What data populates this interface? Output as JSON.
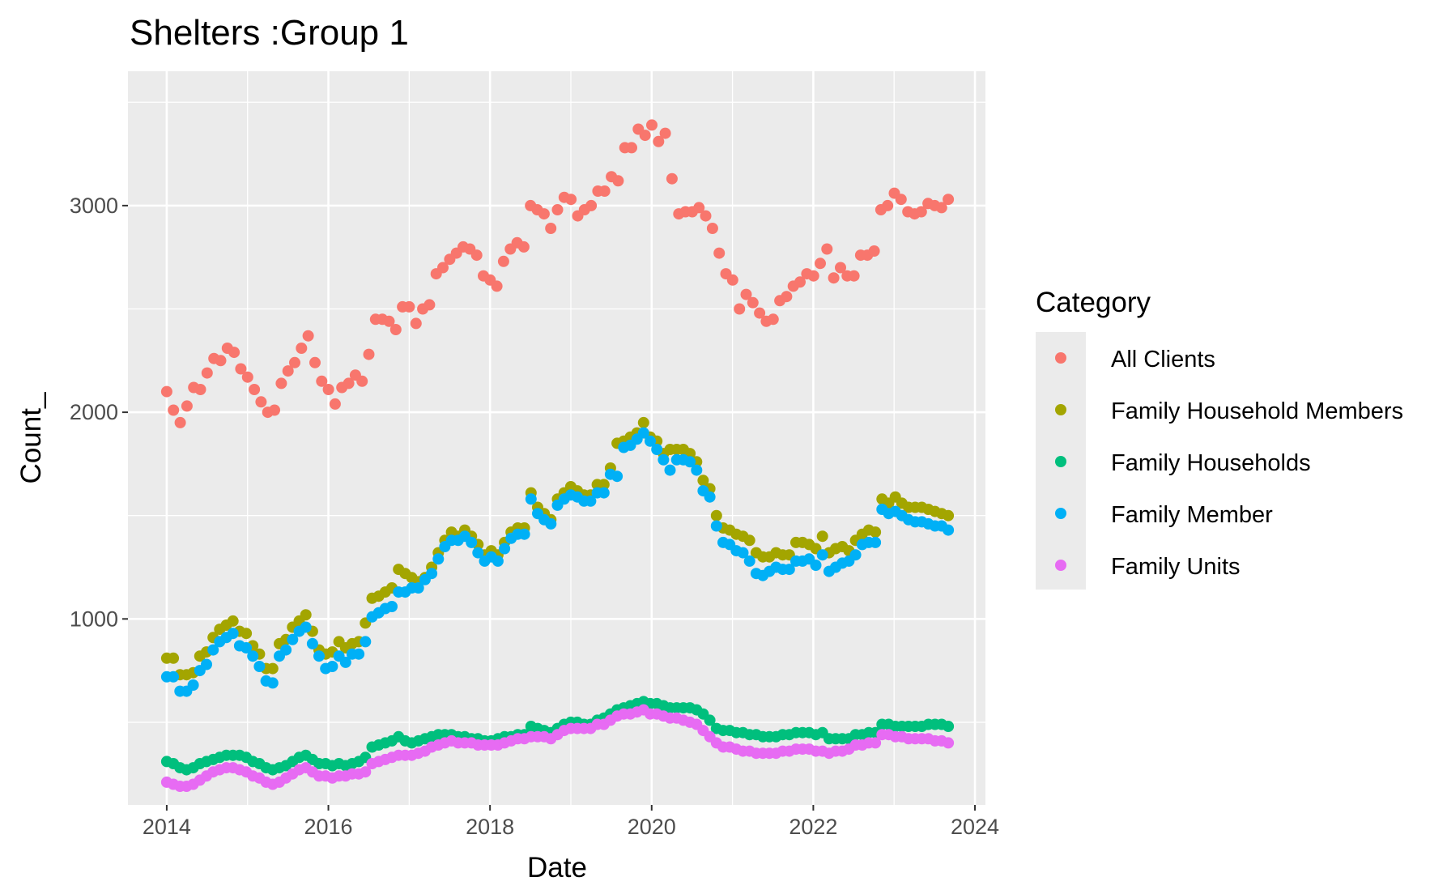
{
  "chart_data": {
    "type": "scatter",
    "title": "Shelters :Group 1",
    "xlabel": "Date",
    "ylabel": "Count_",
    "x_tick_labels": [
      "2014",
      "2016",
      "2018",
      "2020",
      "2022",
      "2024"
    ],
    "y_tick_labels": [
      "1000",
      "2000",
      "3000"
    ],
    "xlim": [
      2013.52,
      2024.13
    ],
    "ylim": [
      100,
      3650
    ],
    "grid": true,
    "legend_title": "Category",
    "legend_position": "right",
    "series": [
      {
        "name": "All Clients",
        "color": "#F8766D",
        "x_start": 2014.0,
        "x_end": 2023.67,
        "values": [
          2100,
          2010,
          1950,
          2030,
          2120,
          2110,
          2190,
          2260,
          2250,
          2310,
          2290,
          2210,
          2170,
          2110,
          2050,
          2000,
          2010,
          2140,
          2200,
          2240,
          2310,
          2370,
          2240,
          2150,
          2110,
          2040,
          2120,
          2140,
          2180,
          2150,
          2280,
          2450,
          2450,
          2440,
          2400,
          2510,
          2510,
          2430,
          2500,
          2520,
          2670,
          2700,
          2740,
          2770,
          2800,
          2790,
          2760,
          2660,
          2640,
          2610,
          2730,
          2790,
          2820,
          2800,
          3000,
          2980,
          2960,
          2890,
          2980,
          3040,
          3030,
          2950,
          2980,
          3000,
          3070,
          3070,
          3140,
          3120,
          3280,
          3280,
          3370,
          3340,
          3390,
          3310,
          3350,
          3130,
          2960,
          2970,
          2970,
          2990,
          2950,
          2890,
          2770,
          2670,
          2640,
          2500,
          2570,
          2530,
          2480,
          2440,
          2450,
          2540,
          2560,
          2610,
          2630,
          2670,
          2660,
          2720,
          2790,
          2650,
          2700,
          2660,
          2660,
          2760,
          2760,
          2780,
          2980,
          3000,
          3060,
          3030,
          2970,
          2960,
          2970,
          3010,
          3000,
          2990,
          3030
        ]
      },
      {
        "name": "Family Household Members",
        "color": "#A3A500",
        "x_start": 2014.0,
        "x_end": 2023.67,
        "values": [
          810,
          810,
          730,
          730,
          740,
          820,
          840,
          910,
          950,
          970,
          990,
          940,
          930,
          870,
          830,
          760,
          760,
          880,
          900,
          960,
          990,
          1020,
          940,
          850,
          830,
          840,
          890,
          860,
          880,
          890,
          980,
          1100,
          1110,
          1130,
          1150,
          1240,
          1220,
          1200,
          1180,
          1200,
          1250,
          1320,
          1380,
          1420,
          1400,
          1430,
          1400,
          1360,
          1310,
          1330,
          1310,
          1370,
          1420,
          1440,
          1440,
          1610,
          1540,
          1510,
          1480,
          1580,
          1610,
          1640,
          1620,
          1600,
          1600,
          1650,
          1650,
          1730,
          1850,
          1860,
          1880,
          1900,
          1950,
          1880,
          1860,
          1800,
          1820,
          1820,
          1820,
          1800,
          1760,
          1670,
          1630,
          1500,
          1440,
          1430,
          1410,
          1400,
          1380,
          1320,
          1300,
          1300,
          1320,
          1310,
          1310,
          1370,
          1370,
          1360,
          1340,
          1400,
          1320,
          1340,
          1350,
          1330,
          1380,
          1410,
          1430,
          1420,
          1580,
          1560,
          1590,
          1560,
          1540,
          1540,
          1540,
          1530,
          1520,
          1510,
          1500
        ]
      },
      {
        "name": "Family Households",
        "color": "#00BF7D",
        "x_start": 2014.0,
        "x_end": 2023.67,
        "values": [
          310,
          300,
          280,
          270,
          280,
          300,
          310,
          320,
          330,
          340,
          340,
          340,
          330,
          310,
          300,
          280,
          270,
          280,
          290,
          310,
          330,
          340,
          320,
          300,
          300,
          290,
          300,
          290,
          300,
          310,
          330,
          380,
          390,
          400,
          410,
          430,
          410,
          400,
          410,
          420,
          430,
          440,
          440,
          440,
          430,
          430,
          420,
          420,
          410,
          410,
          420,
          430,
          430,
          440,
          440,
          480,
          470,
          460,
          450,
          470,
          490,
          500,
          500,
          490,
          490,
          510,
          520,
          540,
          560,
          570,
          580,
          590,
          600,
          590,
          590,
          580,
          570,
          570,
          570,
          570,
          560,
          540,
          510,
          470,
          460,
          460,
          450,
          450,
          440,
          440,
          430,
          430,
          430,
          440,
          440,
          450,
          450,
          450,
          440,
          450,
          420,
          420,
          420,
          420,
          440,
          440,
          450,
          450,
          490,
          490,
          480,
          480,
          480,
          480,
          480,
          490,
          490,
          490,
          480
        ]
      },
      {
        "name": "Family Member",
        "color": "#00B0F6",
        "x_start": 2014.0,
        "x_end": 2023.67,
        "values": [
          720,
          720,
          650,
          650,
          680,
          750,
          780,
          850,
          890,
          910,
          930,
          870,
          860,
          820,
          770,
          700,
          690,
          820,
          850,
          900,
          940,
          960,
          880,
          820,
          760,
          770,
          820,
          790,
          830,
          830,
          890,
          1010,
          1030,
          1050,
          1060,
          1130,
          1130,
          1150,
          1150,
          1190,
          1220,
          1290,
          1350,
          1380,
          1380,
          1400,
          1370,
          1320,
          1280,
          1300,
          1280,
          1340,
          1390,
          1410,
          1410,
          1580,
          1510,
          1480,
          1460,
          1550,
          1580,
          1600,
          1590,
          1570,
          1570,
          1610,
          1610,
          1700,
          1690,
          1830,
          1840,
          1870,
          1900,
          1860,
          1820,
          1770,
          1720,
          1770,
          1770,
          1760,
          1720,
          1620,
          1590,
          1450,
          1370,
          1360,
          1330,
          1320,
          1280,
          1220,
          1210,
          1230,
          1250,
          1240,
          1240,
          1280,
          1280,
          1290,
          1260,
          1310,
          1230,
          1250,
          1270,
          1280,
          1310,
          1360,
          1370,
          1370,
          1530,
          1510,
          1520,
          1500,
          1480,
          1470,
          1470,
          1460,
          1450,
          1450,
          1430
        ]
      },
      {
        "name": "Family Units",
        "color": "#E76BF3",
        "x_start": 2014.0,
        "x_end": 2023.67,
        "values": [
          210,
          200,
          190,
          190,
          200,
          220,
          240,
          260,
          270,
          280,
          280,
          270,
          260,
          240,
          230,
          210,
          200,
          210,
          230,
          250,
          270,
          280,
          260,
          240,
          240,
          230,
          240,
          240,
          250,
          250,
          260,
          300,
          310,
          320,
          330,
          340,
          340,
          340,
          350,
          360,
          380,
          390,
          400,
          410,
          400,
          400,
          400,
          390,
          390,
          390,
          390,
          400,
          410,
          420,
          420,
          430,
          430,
          430,
          420,
          440,
          460,
          470,
          470,
          470,
          470,
          490,
          490,
          510,
          530,
          540,
          540,
          550,
          560,
          540,
          540,
          530,
          520,
          520,
          510,
          500,
          490,
          460,
          430,
          400,
          380,
          380,
          370,
          360,
          360,
          350,
          350,
          350,
          350,
          360,
          360,
          370,
          370,
          370,
          360,
          360,
          350,
          360,
          360,
          370,
          390,
          390,
          400,
          400,
          440,
          440,
          430,
          430,
          420,
          420,
          420,
          420,
          410,
          410,
          400
        ]
      }
    ]
  }
}
